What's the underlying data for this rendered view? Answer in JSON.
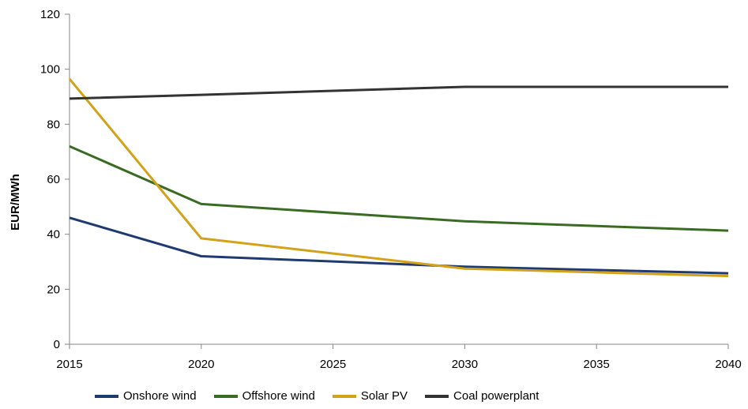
{
  "chart_data": {
    "type": "line",
    "ylabel": "EUR/MWh",
    "xlabel": "",
    "x": [
      2015,
      2020,
      2030,
      2040
    ],
    "xlim": [
      2015,
      2040
    ],
    "xticks": [
      "2015",
      "2020",
      "2025",
      "2030",
      "2035",
      "2040"
    ],
    "ylim": [
      0,
      120
    ],
    "yticks": [
      "0",
      "20",
      "40",
      "60",
      "80",
      "100",
      "120"
    ],
    "grid": false,
    "legend_position": "bottom",
    "series": [
      {
        "name": "Onshore wind",
        "color": "#1f3a6e",
        "values": [
          46,
          32,
          28.2,
          25.8
        ]
      },
      {
        "name": "Offshore wind",
        "color": "#3a6b22",
        "values": [
          72,
          51,
          44.7,
          41.3
        ]
      },
      {
        "name": "Solar PV",
        "color": "#d2a21a",
        "values": [
          96.5,
          38.5,
          27.5,
          24.8
        ]
      },
      {
        "name": "Coal powerplant",
        "color": "#333333",
        "values": [
          89.3,
          90.7,
          93.6,
          93.6
        ]
      }
    ]
  }
}
